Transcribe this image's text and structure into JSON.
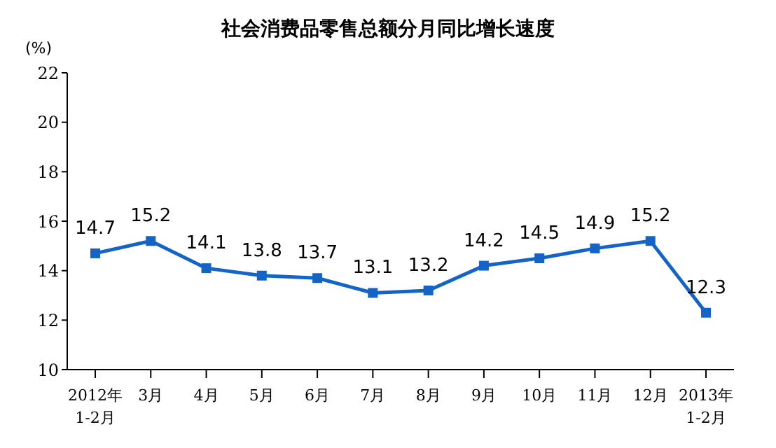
{
  "chart_data": {
    "type": "line",
    "title": "社会消费品零售总额分月同比增长速度",
    "ylabel": "(%)",
    "categories": [
      "2012年\n1-2月",
      "3月",
      "4月",
      "5月",
      "6月",
      "7月",
      "8月",
      "9月",
      "10月",
      "11月",
      "12月",
      "2013年\n1-2月"
    ],
    "series": [
      {
        "color": "#1464c8",
        "values": [
          14.7,
          15.2,
          14.1,
          13.8,
          13.7,
          13.1,
          13.2,
          14.2,
          14.5,
          14.9,
          15.2,
          12.3
        ]
      }
    ],
    "ylim": [
      10,
      22
    ],
    "yticks": [
      10,
      12,
      14,
      16,
      18,
      20,
      22
    ],
    "grid": false,
    "legend": false,
    "marker": "square",
    "line_style": "solid",
    "data_labels": true
  }
}
